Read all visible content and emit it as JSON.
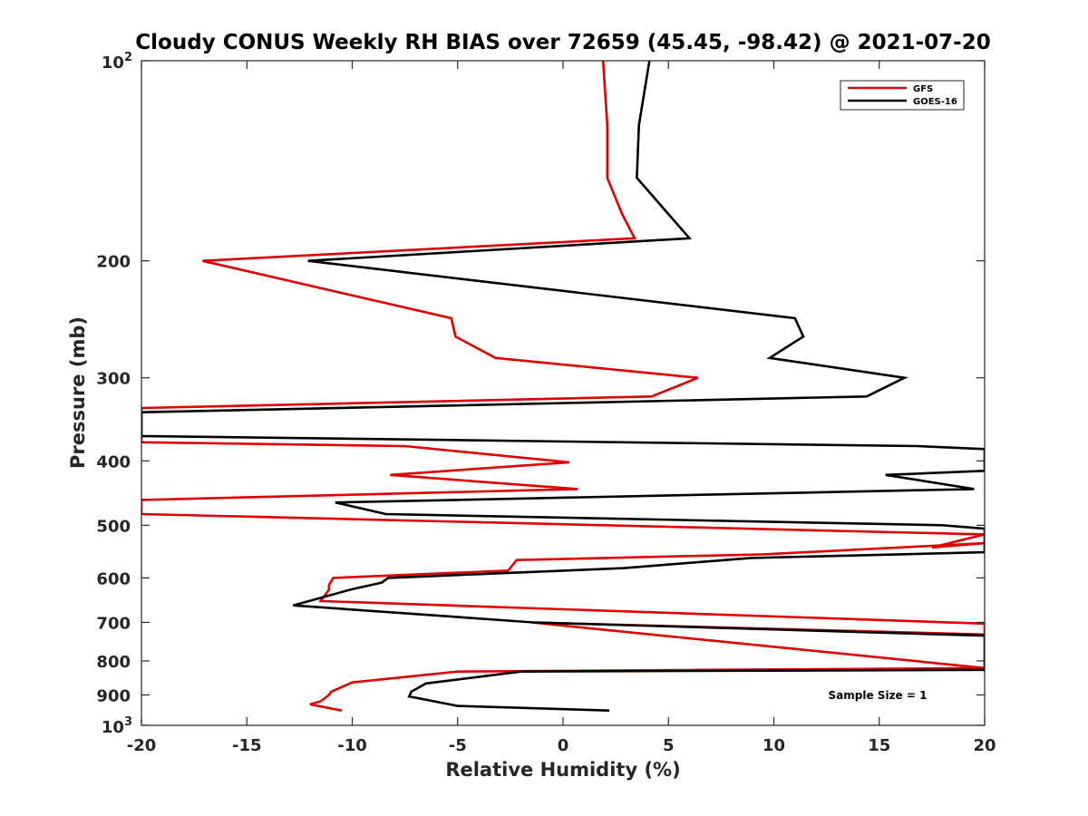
{
  "chart_data": {
    "type": "line",
    "title": "Cloudy CONUS Weekly RH BIAS over 72659 (45.45, -98.42) @ 2021-07-20",
    "xlabel": "Relative Humidity (%)",
    "ylabel": "Pressure (mb)",
    "xlim": [
      -20,
      20
    ],
    "ylim": [
      100,
      1000
    ],
    "y_scale": "log",
    "y_reversed": true,
    "grid": false,
    "legend_position": "top-right",
    "x_ticks": [
      "-20",
      "-15",
      "-10",
      "-5",
      "0",
      "5",
      "10",
      "15",
      "20"
    ],
    "y_ticks": [
      {
        "value": 100,
        "base": "10",
        "exp": "2"
      },
      {
        "value": 200,
        "label": "200"
      },
      {
        "value": 300,
        "label": "300"
      },
      {
        "value": 400,
        "label": "400"
      },
      {
        "value": 500,
        "label": "500"
      },
      {
        "value": 600,
        "label": "600"
      },
      {
        "value": 700,
        "label": "700"
      },
      {
        "value": 800,
        "label": "800"
      },
      {
        "value": 900,
        "label": "900"
      },
      {
        "value": 1000,
        "base": "10",
        "exp": "3"
      }
    ],
    "annotation": "Sample Size = 1",
    "series": [
      {
        "name": "GFS",
        "color": "#e00000",
        "points": [
          [
            1.9,
            100
          ],
          [
            2.1,
            125
          ],
          [
            2.1,
            150
          ],
          [
            2.8,
            170
          ],
          [
            3.4,
            185
          ],
          [
            -17.1,
            200
          ],
          [
            -5.3,
            244
          ],
          [
            -5.1,
            260
          ],
          [
            -3.2,
            280
          ],
          [
            6.4,
            300
          ],
          [
            4.2,
            320
          ],
          [
            -20.0,
            333
          ],
          [
            -20.0,
            375
          ],
          [
            -7.5,
            380
          ],
          [
            0.3,
            402
          ],
          [
            -8.2,
            420
          ],
          [
            0.7,
            441
          ],
          [
            -20.0,
            458
          ],
          [
            -20.0,
            481
          ],
          [
            20.0,
            516
          ],
          [
            17.5,
            540
          ],
          [
            20.0,
            532
          ],
          [
            9.5,
            553
          ],
          [
            -2.2,
            564
          ],
          [
            -2.6,
            585
          ],
          [
            -10.9,
            600
          ],
          [
            -11.1,
            615
          ],
          [
            -11.1,
            625
          ],
          [
            -11.5,
            650
          ],
          [
            20.0,
            703
          ],
          [
            20.0,
            730
          ],
          [
            -1.5,
            700
          ],
          [
            20.0,
            820
          ],
          [
            -5.0,
            830
          ],
          [
            -10.0,
            862
          ],
          [
            -11.0,
            890
          ],
          [
            -11.1,
            900
          ],
          [
            -11.5,
            920
          ],
          [
            -12.0,
            930
          ],
          [
            -10.5,
            950
          ]
        ]
      },
      {
        "name": "GOES-16",
        "color": "#000000",
        "points": [
          [
            4.1,
            100
          ],
          [
            3.6,
            125
          ],
          [
            3.5,
            150
          ],
          [
            6.0,
            185
          ],
          [
            -12.1,
            200
          ],
          [
            11.0,
            244
          ],
          [
            11.4,
            260
          ],
          [
            9.8,
            280
          ],
          [
            16.2,
            300
          ],
          [
            14.4,
            320
          ],
          [
            -20.0,
            338
          ],
          [
            -20.0,
            367
          ],
          [
            16.8,
            380
          ],
          [
            20.0,
            384
          ],
          [
            20.0,
            414
          ],
          [
            15.3,
            420
          ],
          [
            19.5,
            441
          ],
          [
            -10.8,
            462
          ],
          [
            -8.4,
            481
          ],
          [
            18.0,
            500
          ],
          [
            20.0,
            506
          ],
          [
            20.0,
            549
          ],
          [
            8.9,
            560
          ],
          [
            2.9,
            580
          ],
          [
            -8.3,
            600
          ],
          [
            -8.6,
            610
          ],
          [
            -10.1,
            625
          ],
          [
            -12.8,
            660
          ],
          [
            -1.4,
            700
          ],
          [
            20.0,
            733
          ],
          [
            20.0,
            825
          ],
          [
            -2.0,
            830
          ],
          [
            -6.5,
            865
          ],
          [
            -7.2,
            890
          ],
          [
            -7.3,
            905
          ],
          [
            -5.0,
            935
          ],
          [
            2.2,
            950
          ]
        ]
      }
    ]
  }
}
